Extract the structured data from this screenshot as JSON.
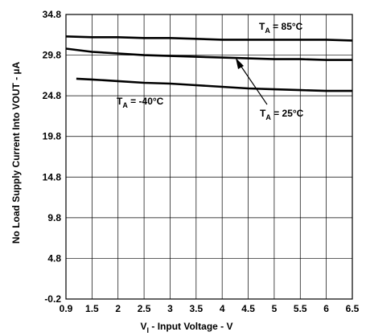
{
  "chart_data": {
    "type": "line",
    "xlabel_main": "V",
    "xlabel_sub": "I",
    "xlabel_rest": " - Input Voltage - V",
    "ylabel": "No Load Supply Current Into VOUT - µA",
    "x_ticks": [
      "0.9",
      "1.5",
      "2",
      "2.5",
      "3",
      "3.5",
      "4",
      "4.5",
      "5",
      "5.5",
      "6",
      "6.5"
    ],
    "y_ticks": [
      "-0.2",
      "4.8",
      "9.8",
      "14.8",
      "19.8",
      "24.8",
      "29.8",
      "34.8"
    ],
    "xlim": [
      1.0,
      6.5
    ],
    "ylim": [
      -0.2,
      34.8
    ],
    "grid": true,
    "series": [
      {
        "name": "TA = 85°C",
        "label_main": "T",
        "label_sub": "A",
        "label_rest": " = 85°C",
        "x": [
          1.0,
          1.5,
          2.0,
          2.5,
          3.0,
          3.5,
          4.0,
          4.5,
          5.0,
          5.5,
          6.0,
          6.5
        ],
        "y": [
          32.1,
          32.0,
          32.0,
          31.9,
          31.9,
          31.8,
          31.7,
          31.7,
          31.7,
          31.7,
          31.7,
          31.6
        ]
      },
      {
        "name": "TA = 25°C",
        "label_main": "T",
        "label_sub": "A",
        "label_rest": " = 25°C",
        "x": [
          1.0,
          1.5,
          2.0,
          2.5,
          3.0,
          3.5,
          4.0,
          4.5,
          5.0,
          5.5,
          6.0,
          6.5
        ],
        "y": [
          30.6,
          30.2,
          30.0,
          29.8,
          29.7,
          29.6,
          29.5,
          29.4,
          29.3,
          29.3,
          29.2,
          29.2
        ]
      },
      {
        "name": "TA = -40°C",
        "label_main": "T",
        "label_sub": "A",
        "label_rest": " = -40°C",
        "x": [
          1.2,
          1.5,
          2.0,
          2.5,
          3.0,
          3.5,
          4.0,
          4.5,
          5.0,
          5.5,
          6.0,
          6.5
        ],
        "y": [
          26.9,
          26.8,
          26.6,
          26.4,
          26.3,
          26.1,
          25.9,
          25.7,
          25.6,
          25.5,
          25.4,
          25.4
        ]
      }
    ]
  }
}
